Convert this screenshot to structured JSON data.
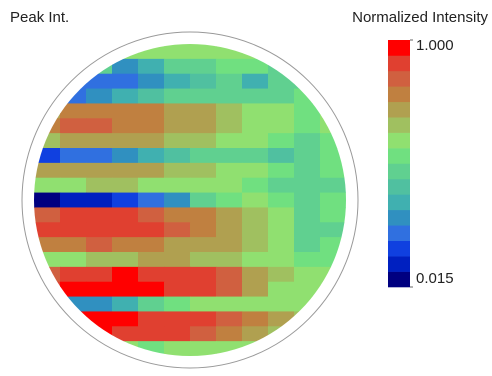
{
  "chart_data": {
    "type": "heatmap",
    "title": "Peak Int.",
    "colorbar_title": "Normalized Intensity",
    "zlim": [
      0.015,
      1
    ],
    "zticks": [
      {
        "value": 1,
        "label": "1.000"
      },
      0.015
    ],
    "colorscale": [
      "#000080",
      "#0020c0",
      "#1040e0",
      "#3070e0",
      "#3090c0",
      "#40b0b0",
      "#50c0a0",
      "#60d090",
      "#70e080",
      "#90e070",
      "#a0c060",
      "#b0a050",
      "#c08040",
      "#d06040",
      "#e04030",
      "#ff0000"
    ],
    "z": [
      [
        0.6,
        0.6,
        0.55,
        0.6,
        0.62,
        0.6,
        0.58,
        0.6,
        0.6,
        0.55,
        0.6,
        0.6
      ],
      [
        0.5,
        0.45,
        0.5,
        0.3,
        0.35,
        0.45,
        0.5,
        0.55,
        0.55,
        0.5,
        0.55,
        0.6
      ],
      [
        0.15,
        0.2,
        0.2,
        0.25,
        0.3,
        0.35,
        0.4,
        0.45,
        0.35,
        0.45,
        0.5,
        0.55
      ],
      [
        0.3,
        0.25,
        0.3,
        0.35,
        0.4,
        0.45,
        0.5,
        0.5,
        0.45,
        0.5,
        0.55,
        0.6
      ],
      [
        0.75,
        0.78,
        0.8,
        0.8,
        0.78,
        0.75,
        0.7,
        0.65,
        0.6,
        0.6,
        0.55,
        0.6
      ],
      [
        0.8,
        0.82,
        0.82,
        0.8,
        0.78,
        0.75,
        0.72,
        0.65,
        0.6,
        0.58,
        0.55,
        0.6
      ],
      [
        0.65,
        0.7,
        0.72,
        0.7,
        0.7,
        0.68,
        0.65,
        0.62,
        0.6,
        0.55,
        0.5,
        0.55
      ],
      [
        0.15,
        0.2,
        0.25,
        0.3,
        0.35,
        0.4,
        0.45,
        0.5,
        0.45,
        0.4,
        0.45,
        0.55
      ],
      [
        0.7,
        0.72,
        0.75,
        0.72,
        0.7,
        0.68,
        0.65,
        0.6,
        0.58,
        0.55,
        0.5,
        0.55
      ],
      [
        0.6,
        0.62,
        0.65,
        0.65,
        0.62,
        0.6,
        0.6,
        0.58,
        0.55,
        0.5,
        0.45,
        0.5
      ],
      [
        0.05,
        0.08,
        0.1,
        0.15,
        0.2,
        0.3,
        0.45,
        0.55,
        0.6,
        0.55,
        0.5,
        0.55
      ],
      [
        0.85,
        0.88,
        0.9,
        0.88,
        0.85,
        0.8,
        0.78,
        0.72,
        0.65,
        0.6,
        0.5,
        0.55
      ],
      [
        0.9,
        0.92,
        0.92,
        0.9,
        0.88,
        0.85,
        0.8,
        0.72,
        0.65,
        0.58,
        0.45,
        0.5
      ],
      [
        0.78,
        0.8,
        0.82,
        0.8,
        0.78,
        0.75,
        0.72,
        0.7,
        0.65,
        0.6,
        0.5,
        0.55
      ],
      [
        0.6,
        0.62,
        0.65,
        0.68,
        0.7,
        0.7,
        0.68,
        0.65,
        0.62,
        0.6,
        0.55,
        0.55
      ],
      [
        0.85,
        0.9,
        0.92,
        0.95,
        0.92,
        0.9,
        0.88,
        0.85,
        0.75,
        0.65,
        0.6,
        0.6
      ],
      [
        0.9,
        0.95,
        0.97,
        0.98,
        0.95,
        0.92,
        0.9,
        0.85,
        0.75,
        0.62,
        0.6,
        0.6
      ],
      [
        0.3,
        0.28,
        0.3,
        0.35,
        0.45,
        0.55,
        0.6,
        0.62,
        0.6,
        0.6,
        0.58,
        0.6
      ],
      [
        0.95,
        0.97,
        0.98,
        0.95,
        0.92,
        0.9,
        0.88,
        0.85,
        0.78,
        0.7,
        0.65,
        0.6
      ],
      [
        0.9,
        0.95,
        0.95,
        0.92,
        0.9,
        0.88,
        0.85,
        0.8,
        0.75,
        0.68,
        0.62,
        0.6
      ],
      [
        0.6,
        0.62,
        0.65,
        0.6,
        0.55,
        0.6,
        0.62,
        0.6,
        0.58,
        0.6,
        0.6,
        0.6
      ]
    ]
  }
}
